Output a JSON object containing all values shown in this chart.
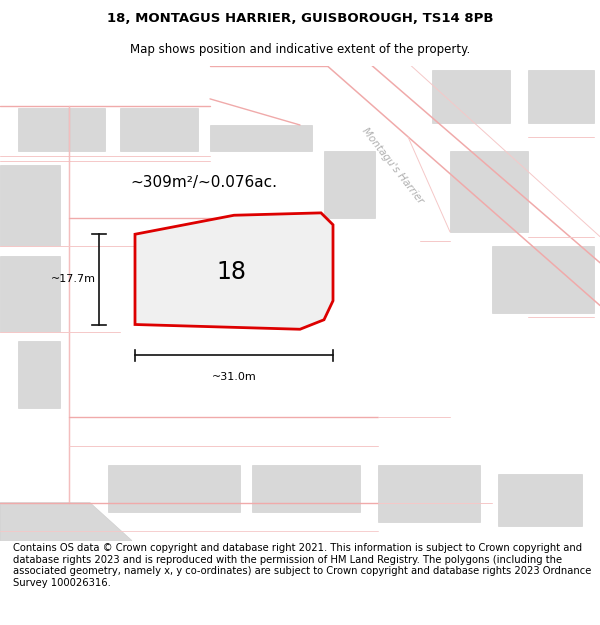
{
  "title_line1": "18, MONTAGUS HARRIER, GUISBOROUGH, TS14 8PB",
  "title_line2": "Map shows position and indicative extent of the property.",
  "footer_text": "Contains OS data © Crown copyright and database right 2021. This information is subject to Crown copyright and database rights 2023 and is reproduced with the permission of\nHM Land Registry. The polygons (including the associated geometry, namely x, y\nco-ordinates) are subject to Crown copyright and database rights 2023 Ordnance Survey\n100026316.",
  "area_text": "~309m²/~0.076ac.",
  "number_label": "18",
  "width_label": "~31.0m",
  "height_label": "~17.7m",
  "street_label": "Montagu's Harrier",
  "map_bg": "#f7f7f7",
  "road_pink": "#f0aaaa",
  "road_pink2": "#f5c8c8",
  "highlight_red": "#dd0000",
  "building_gray": "#d8d8d8",
  "building_edge": "#cccccc",
  "street_white": "#ffffff",
  "dim_color": "#111111",
  "street_label_color": "#b0b0b0",
  "title_fontsize": 9.5,
  "subtitle_fontsize": 8.5,
  "footer_fontsize": 7.2,
  "area_fontsize": 11,
  "number_fontsize": 17,
  "dim_fontsize": 8.0,
  "street_fontsize": 7.5
}
